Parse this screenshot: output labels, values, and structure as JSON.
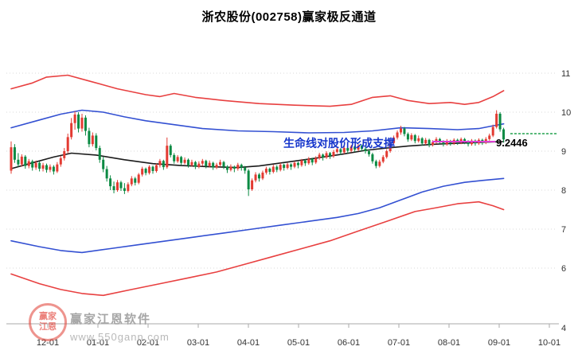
{
  "title": "浙农股份(002758)赢家极反通道",
  "annotations": {
    "support_note": "生命线对股价形成支撑",
    "price_label": "9.2446"
  },
  "watermark": {
    "logo_text_top": "赢家",
    "logo_text_bottom": "江恩",
    "brand": "赢家江恩软件",
    "website": "www.550gann.com"
  },
  "chart_data": {
    "type": "candlestick",
    "title": "浙农股份(002758)赢家极反通道",
    "stock_name": "浙农股份",
    "stock_code": "002758",
    "indicator": "赢家极反通道",
    "x_axis_labels": [
      "12-01",
      "01-01",
      "02-01",
      "03-01",
      "04-01",
      "05-01",
      "06-01",
      "07-01",
      "08-01",
      "09-01",
      "10-01"
    ],
    "y_axis_ticks": [
      11,
      10,
      9,
      8,
      7,
      6
    ],
    "y_axis_extra_label": "4",
    "ylim": [
      4.6,
      12.0
    ],
    "grid": "horizontal-dotted",
    "candle_colors": {
      "up": "#e33b32",
      "down": "#0b8a43"
    },
    "candles": [
      [
        8.5,
        9.25,
        8.42,
        9.1
      ],
      [
        9.1,
        9.18,
        8.7,
        8.78
      ],
      [
        8.78,
        8.95,
        8.6,
        8.66
      ],
      [
        8.66,
        8.92,
        8.6,
        8.86
      ],
      [
        8.86,
        8.9,
        8.55,
        8.62
      ],
      [
        8.62,
        8.8,
        8.56,
        8.74
      ],
      [
        8.74,
        8.78,
        8.5,
        8.58
      ],
      [
        8.58,
        8.76,
        8.52,
        8.7
      ],
      [
        8.7,
        8.74,
        8.48,
        8.55
      ],
      [
        8.55,
        8.7,
        8.48,
        8.64
      ],
      [
        8.64,
        8.68,
        8.45,
        8.52
      ],
      [
        8.52,
        8.66,
        8.46,
        8.6
      ],
      [
        8.6,
        8.64,
        8.4,
        8.48
      ],
      [
        8.48,
        8.72,
        8.44,
        8.66
      ],
      [
        8.66,
        8.88,
        8.6,
        8.82
      ],
      [
        8.82,
        9.08,
        8.76,
        9.0
      ],
      [
        9.0,
        9.45,
        8.94,
        9.36
      ],
      [
        9.36,
        9.85,
        9.3,
        9.72
      ],
      [
        9.72,
        10.02,
        9.55,
        9.94
      ],
      [
        9.94,
        10.0,
        9.48,
        9.58
      ],
      [
        9.58,
        9.96,
        9.5,
        9.86
      ],
      [
        9.86,
        9.92,
        9.4,
        9.52
      ],
      [
        9.52,
        9.6,
        9.1,
        9.18
      ],
      [
        9.18,
        9.48,
        9.12,
        9.4
      ],
      [
        9.4,
        9.46,
        9.02,
        9.08
      ],
      [
        9.08,
        9.14,
        8.7,
        8.78
      ],
      [
        8.78,
        8.86,
        8.46,
        8.54
      ],
      [
        8.54,
        8.62,
        8.22,
        8.3
      ],
      [
        8.3,
        8.38,
        8.0,
        8.1
      ],
      [
        8.1,
        8.22,
        7.92,
        8.0
      ],
      [
        8.0,
        8.26,
        7.96,
        8.2
      ],
      [
        8.2,
        8.24,
        7.98,
        8.05
      ],
      [
        8.05,
        8.18,
        7.9,
        7.98
      ],
      [
        7.98,
        8.2,
        7.94,
        8.15
      ],
      [
        8.15,
        8.36,
        8.1,
        8.3
      ],
      [
        8.3,
        8.34,
        8.12,
        8.19
      ],
      [
        8.19,
        8.44,
        8.15,
        8.4
      ],
      [
        8.4,
        8.6,
        8.35,
        8.55
      ],
      [
        8.55,
        8.58,
        8.38,
        8.44
      ],
      [
        8.44,
        8.64,
        8.4,
        8.6
      ],
      [
        8.6,
        8.63,
        8.42,
        8.49
      ],
      [
        8.49,
        8.68,
        8.45,
        8.64
      ],
      [
        8.64,
        8.8,
        8.58,
        8.75
      ],
      [
        8.75,
        8.78,
        8.52,
        8.59
      ],
      [
        8.59,
        9.35,
        8.55,
        9.14
      ],
      [
        9.14,
        9.18,
        8.84,
        8.9
      ],
      [
        8.9,
        8.95,
        8.68,
        8.74
      ],
      [
        8.74,
        8.9,
        8.7,
        8.85
      ],
      [
        8.85,
        8.88,
        8.64,
        8.7
      ],
      [
        8.7,
        8.84,
        8.66,
        8.78
      ],
      [
        8.78,
        8.81,
        8.58,
        8.64
      ],
      [
        8.64,
        8.78,
        8.6,
        8.72
      ],
      [
        8.72,
        8.75,
        8.54,
        8.6
      ],
      [
        8.6,
        8.74,
        8.56,
        8.68
      ],
      [
        8.68,
        8.8,
        8.62,
        8.75
      ],
      [
        8.75,
        8.78,
        8.56,
        8.62
      ],
      [
        8.62,
        8.76,
        8.58,
        8.7
      ],
      [
        8.7,
        8.73,
        8.52,
        8.58
      ],
      [
        8.58,
        8.7,
        8.54,
        8.65
      ],
      [
        8.65,
        8.78,
        8.6,
        8.72
      ],
      [
        8.72,
        8.75,
        8.54,
        8.6
      ],
      [
        8.6,
        8.64,
        8.44,
        8.52
      ],
      [
        8.52,
        8.66,
        8.48,
        8.6
      ],
      [
        8.6,
        8.63,
        8.46,
        8.55
      ],
      [
        8.55,
        8.7,
        8.5,
        8.65
      ],
      [
        8.65,
        8.68,
        8.5,
        8.58
      ],
      [
        8.58,
        8.62,
        8.42,
        8.5
      ],
      [
        8.5,
        8.54,
        7.85,
        8.02
      ],
      [
        8.02,
        8.3,
        7.98,
        8.25
      ],
      [
        8.25,
        8.46,
        8.2,
        8.4
      ],
      [
        8.4,
        8.44,
        8.22,
        8.3
      ],
      [
        8.3,
        8.5,
        8.26,
        8.45
      ],
      [
        8.45,
        8.6,
        8.4,
        8.55
      ],
      [
        8.55,
        8.58,
        8.4,
        8.47
      ],
      [
        8.47,
        8.65,
        8.43,
        8.6
      ],
      [
        8.6,
        8.64,
        8.46,
        8.52
      ],
      [
        8.52,
        8.7,
        8.48,
        8.65
      ],
      [
        8.65,
        8.68,
        8.5,
        8.57
      ],
      [
        8.57,
        8.7,
        8.53,
        8.66
      ],
      [
        8.66,
        8.69,
        8.52,
        8.6
      ],
      [
        8.6,
        8.74,
        8.56,
        8.7
      ],
      [
        8.7,
        8.73,
        8.56,
        8.64
      ],
      [
        8.64,
        8.8,
        8.6,
        8.76
      ],
      [
        8.76,
        8.79,
        8.62,
        8.69
      ],
      [
        8.69,
        8.85,
        8.65,
        8.8
      ],
      [
        8.8,
        8.83,
        8.64,
        8.71
      ],
      [
        8.71,
        8.87,
        8.67,
        8.82
      ],
      [
        8.82,
        8.96,
        8.78,
        8.91
      ],
      [
        8.91,
        8.94,
        8.76,
        8.84
      ],
      [
        8.84,
        9.0,
        8.8,
        8.95
      ],
      [
        8.95,
        8.98,
        8.8,
        8.87
      ],
      [
        8.87,
        9.03,
        8.83,
        8.98
      ],
      [
        8.98,
        9.1,
        8.94,
        9.05
      ],
      [
        9.05,
        9.08,
        8.9,
        8.97
      ],
      [
        8.97,
        9.13,
        8.93,
        9.08
      ],
      [
        9.08,
        9.11,
        8.94,
        9.01
      ],
      [
        9.01,
        9.16,
        8.97,
        9.12
      ],
      [
        9.12,
        9.15,
        8.98,
        9.04
      ],
      [
        9.04,
        9.18,
        9.0,
        9.14
      ],
      [
        9.14,
        9.17,
        9.0,
        9.06
      ],
      [
        9.06,
        9.12,
        8.94,
        9.0
      ],
      [
        9.0,
        9.05,
        8.86,
        8.92
      ],
      [
        8.92,
        8.96,
        8.68,
        8.74
      ],
      [
        8.74,
        8.78,
        8.56,
        8.62
      ],
      [
        8.62,
        8.78,
        8.58,
        8.73
      ],
      [
        8.73,
        8.9,
        8.69,
        8.85
      ],
      [
        8.85,
        9.05,
        8.81,
        9.0
      ],
      [
        9.0,
        9.26,
        8.96,
        9.21
      ],
      [
        9.21,
        9.4,
        9.17,
        9.35
      ],
      [
        9.35,
        9.53,
        9.3,
        9.48
      ],
      [
        9.48,
        9.65,
        9.42,
        9.58
      ],
      [
        9.58,
        9.62,
        9.38,
        9.44
      ],
      [
        9.44,
        9.48,
        9.24,
        9.3
      ],
      [
        9.3,
        9.46,
        9.26,
        9.41
      ],
      [
        9.41,
        9.44,
        9.2,
        9.26
      ],
      [
        9.26,
        9.4,
        9.22,
        9.33
      ],
      [
        9.33,
        9.36,
        9.14,
        9.2
      ],
      [
        9.2,
        9.34,
        9.16,
        9.29
      ],
      [
        9.29,
        9.32,
        9.1,
        9.16
      ],
      [
        9.16,
        9.28,
        9.12,
        9.23
      ],
      [
        9.23,
        9.36,
        9.19,
        9.31
      ],
      [
        9.31,
        9.34,
        9.18,
        9.24
      ],
      [
        9.24,
        9.28,
        9.12,
        9.18
      ],
      [
        9.18,
        9.31,
        9.14,
        9.26
      ],
      [
        9.26,
        9.29,
        9.14,
        9.2
      ],
      [
        9.2,
        9.33,
        9.16,
        9.29
      ],
      [
        9.29,
        9.32,
        9.16,
        9.22
      ],
      [
        9.22,
        9.35,
        9.18,
        9.31
      ],
      [
        9.31,
        9.34,
        9.18,
        9.24
      ],
      [
        9.24,
        9.28,
        9.12,
        9.18
      ],
      [
        9.18,
        9.31,
        9.14,
        9.27
      ],
      [
        9.27,
        9.3,
        9.14,
        9.2
      ],
      [
        9.2,
        9.33,
        9.16,
        9.29
      ],
      [
        9.29,
        9.32,
        9.16,
        9.22
      ],
      [
        9.22,
        9.36,
        9.18,
        9.31
      ],
      [
        9.31,
        9.45,
        9.27,
        9.4
      ],
      [
        9.4,
        9.68,
        9.36,
        9.62
      ],
      [
        9.62,
        10.05,
        9.58,
        9.96
      ],
      [
        9.96,
        10.0,
        9.5,
        9.56
      ],
      [
        9.56,
        9.6,
        9.22,
        9.3
      ]
    ],
    "lines": [
      {
        "name": "channel-upper-outer-red",
        "color": "#e84040",
        "width": 1.6,
        "above": false,
        "points": [
          [
            0,
            10.6
          ],
          [
            6,
            10.75
          ],
          [
            10,
            10.9
          ],
          [
            16,
            10.95
          ],
          [
            22,
            10.8
          ],
          [
            30,
            10.6
          ],
          [
            38,
            10.45
          ],
          [
            42,
            10.4
          ],
          [
            46,
            10.48
          ],
          [
            52,
            10.38
          ],
          [
            60,
            10.3
          ],
          [
            70,
            10.22
          ],
          [
            80,
            10.18
          ],
          [
            90,
            10.15
          ],
          [
            96,
            10.2
          ],
          [
            102,
            10.38
          ],
          [
            107,
            10.42
          ],
          [
            112,
            10.3
          ],
          [
            118,
            10.22
          ],
          [
            124,
            10.25
          ],
          [
            128,
            10.2
          ],
          [
            132,
            10.25
          ],
          [
            136,
            10.4
          ],
          [
            139,
            10.55
          ]
        ]
      },
      {
        "name": "channel-upper-inner-blue",
        "color": "#3350d2",
        "width": 1.6,
        "above": false,
        "points": [
          [
            0,
            9.6
          ],
          [
            8,
            9.8
          ],
          [
            14,
            9.95
          ],
          [
            20,
            10.05
          ],
          [
            26,
            10.0
          ],
          [
            32,
            9.88
          ],
          [
            38,
            9.78
          ],
          [
            46,
            9.68
          ],
          [
            54,
            9.58
          ],
          [
            64,
            9.52
          ],
          [
            74,
            9.5
          ],
          [
            84,
            9.47
          ],
          [
            94,
            9.48
          ],
          [
            102,
            9.52
          ],
          [
            110,
            9.6
          ],
          [
            118,
            9.58
          ],
          [
            126,
            9.55
          ],
          [
            132,
            9.58
          ],
          [
            136,
            9.65
          ],
          [
            139,
            9.7
          ]
        ]
      },
      {
        "name": "life-line-black",
        "color": "#1b1b1b",
        "width": 1.6,
        "above": false,
        "points": [
          [
            0,
            8.55
          ],
          [
            6,
            8.7
          ],
          [
            12,
            8.85
          ],
          [
            17,
            8.95
          ],
          [
            24,
            8.9
          ],
          [
            32,
            8.78
          ],
          [
            40,
            8.68
          ],
          [
            48,
            8.63
          ],
          [
            56,
            8.6
          ],
          [
            64,
            8.58
          ],
          [
            70,
            8.62
          ],
          [
            78,
            8.72
          ],
          [
            86,
            8.82
          ],
          [
            94,
            8.93
          ],
          [
            100,
            9.02
          ],
          [
            106,
            9.08
          ],
          [
            112,
            9.13
          ],
          [
            120,
            9.18
          ],
          [
            128,
            9.21
          ],
          [
            134,
            9.23
          ],
          [
            139,
            9.245
          ]
        ]
      },
      {
        "name": "channel-lower-inner-blue",
        "color": "#3350d2",
        "width": 1.6,
        "above": false,
        "points": [
          [
            0,
            6.7
          ],
          [
            8,
            6.55
          ],
          [
            14,
            6.45
          ],
          [
            20,
            6.4
          ],
          [
            28,
            6.5
          ],
          [
            36,
            6.6
          ],
          [
            44,
            6.7
          ],
          [
            52,
            6.8
          ],
          [
            60,
            6.9
          ],
          [
            68,
            7.0
          ],
          [
            76,
            7.1
          ],
          [
            84,
            7.2
          ],
          [
            92,
            7.3
          ],
          [
            98,
            7.4
          ],
          [
            104,
            7.55
          ],
          [
            110,
            7.75
          ],
          [
            116,
            7.95
          ],
          [
            122,
            8.1
          ],
          [
            128,
            8.2
          ],
          [
            133,
            8.25
          ],
          [
            139,
            8.3
          ]
        ]
      },
      {
        "name": "channel-lower-outer-red",
        "color": "#e84040",
        "width": 1.6,
        "above": false,
        "points": [
          [
            0,
            5.85
          ],
          [
            8,
            5.6
          ],
          [
            14,
            5.45
          ],
          [
            20,
            5.35
          ],
          [
            26,
            5.3
          ],
          [
            34,
            5.45
          ],
          [
            42,
            5.6
          ],
          [
            50,
            5.75
          ],
          [
            58,
            5.9
          ],
          [
            66,
            6.1
          ],
          [
            74,
            6.3
          ],
          [
            82,
            6.5
          ],
          [
            90,
            6.7
          ],
          [
            98,
            6.95
          ],
          [
            106,
            7.2
          ],
          [
            114,
            7.45
          ],
          [
            120,
            7.55
          ],
          [
            126,
            7.65
          ],
          [
            132,
            7.7
          ],
          [
            136,
            7.6
          ],
          [
            139,
            7.5
          ]
        ]
      },
      {
        "name": "support-line-magenta",
        "color": "#dd3fd3",
        "width": 2,
        "above": true,
        "points": [
          [
            119,
            9.2446
          ],
          [
            136.5,
            9.2446
          ]
        ]
      },
      {
        "name": "projection-line-green-dotted",
        "color": "#1fa04a",
        "width": 1.5,
        "dash": "2,3",
        "above": true,
        "points": [
          [
            141,
            9.45
          ],
          [
            154,
            9.45
          ]
        ]
      }
    ]
  }
}
